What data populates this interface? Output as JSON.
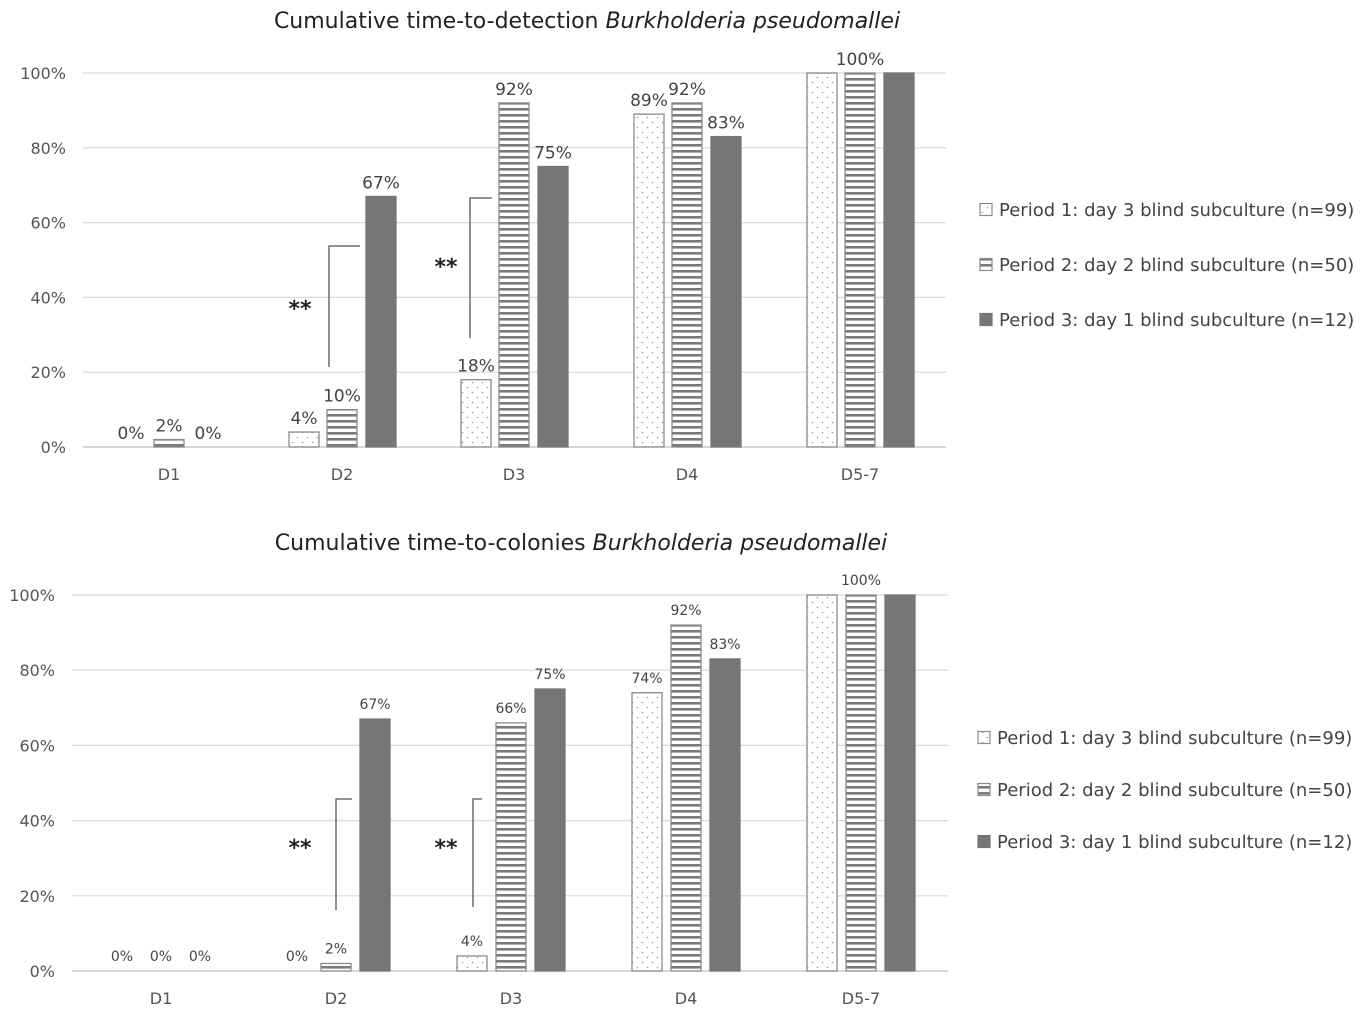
{
  "colors": {
    "period1_fill": "#ffffff",
    "period1_dots": "#9a9a9a",
    "period2_stripes": "#7a7a7a",
    "period3_fill": "#767676",
    "gridline": "#d9d9d9",
    "axis": "#bfbfbf",
    "bracket": "#555555"
  },
  "chart_data": [
    {
      "type": "bar",
      "title": "Cumulative time-to-detection ",
      "title_italic": "Burkholderia pseudomallei",
      "categories": [
        "D1",
        "D2",
        "D3",
        "D4",
        "D5-7"
      ],
      "ylim": [
        0,
        100
      ],
      "yticks": [
        0,
        20,
        40,
        60,
        80,
        100
      ],
      "ytick_labels": [
        "0%",
        "20%",
        "40%",
        "60%",
        "80%",
        "100%"
      ],
      "grid": true,
      "legend_position": "right",
      "series": [
        {
          "name": "Period 1: day 3 blind subculture (n=99)",
          "pattern": "dots",
          "values": [
            0,
            4,
            18,
            89,
            100
          ],
          "labels": [
            "0%",
            "4%",
            "18%",
            "89%",
            ""
          ]
        },
        {
          "name": "Period 2: day 2 blind subculture (n=50)",
          "pattern": "stripes",
          "values": [
            2,
            10,
            92,
            92,
            100
          ],
          "labels": [
            "2%",
            "10%",
            "92%",
            "92%",
            "100%"
          ]
        },
        {
          "name": "Period 3: day 1 blind subculture (n=12)",
          "pattern": "solid",
          "values": [
            0,
            67,
            75,
            83,
            100
          ],
          "labels": [
            "0%",
            "67%",
            "75%",
            "83%",
            ""
          ]
        }
      ],
      "annotations": [
        {
          "text": "**",
          "category": "D2",
          "between": [
            "Period 1",
            "Period 3"
          ]
        },
        {
          "text": "**",
          "category": "D3",
          "between": [
            "Period 1",
            "Period 2"
          ]
        }
      ]
    },
    {
      "type": "bar",
      "title": "Cumulative time-to-colonies ",
      "title_italic": "Burkholderia pseudomallei",
      "categories": [
        "D1",
        "D2",
        "D3",
        "D4",
        "D5-7"
      ],
      "ylim": [
        0,
        100
      ],
      "yticks": [
        0,
        20,
        40,
        60,
        80,
        100
      ],
      "ytick_labels": [
        "0%",
        "20%",
        "40%",
        "60%",
        "80%",
        "100%"
      ],
      "grid": true,
      "legend_position": "right",
      "series": [
        {
          "name": "Period 1: day 3 blind subculture (n=99)",
          "pattern": "dots",
          "values": [
            0,
            0,
            4,
            74,
            100
          ],
          "labels": [
            "0%",
            "0%",
            "4%",
            "74%",
            ""
          ]
        },
        {
          "name": "Period 2: day 2 blind subculture (n=50)",
          "pattern": "stripes",
          "values": [
            0,
            2,
            66,
            92,
            100
          ],
          "labels": [
            "0%",
            "2%",
            "66%",
            "92%",
            "100%"
          ]
        },
        {
          "name": "Period 3: day 1 blind subculture (n=12)",
          "pattern": "solid",
          "values": [
            0,
            67,
            75,
            83,
            100
          ],
          "labels": [
            "0%",
            "67%",
            "75%",
            "83%",
            ""
          ]
        }
      ],
      "annotations": [
        {
          "text": "**",
          "category": "D2",
          "between": [
            "Period 1",
            "Period 3"
          ]
        },
        {
          "text": "**",
          "category": "D3",
          "between": [
            "Period 1",
            "Period 2"
          ]
        }
      ]
    }
  ]
}
